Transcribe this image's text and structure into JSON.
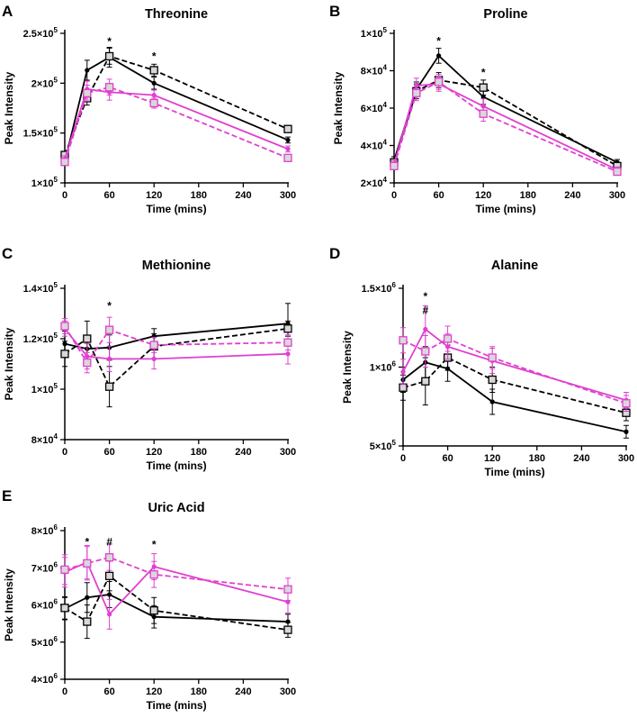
{
  "colors": {
    "black": "#000000",
    "magenta": "#e040d0",
    "square_fill": "#d8d8d8"
  },
  "chart_data": [
    {
      "panel": "A",
      "type": "line",
      "title": "Threonine",
      "xlabel": "Time (mins)",
      "ylabel": "Peak Intensity",
      "xticks": [
        0,
        60,
        120,
        180,
        240,
        300
      ],
      "xlim": [
        0,
        300
      ],
      "ylim": [
        100000,
        250000
      ],
      "yticks": [
        {
          "value": 100000,
          "mant": "1",
          "exp": "5"
        },
        {
          "value": 150000,
          "mant": "1.5",
          "exp": "5"
        },
        {
          "value": 200000,
          "mant": "2",
          "exp": "5"
        },
        {
          "value": 250000,
          "mant": "2.5",
          "exp": "5"
        }
      ],
      "series": [
        {
          "name": "black-solid-circle",
          "color": "#000000",
          "dash": false,
          "marker": "circle",
          "x": [
            0,
            30,
            60,
            120,
            300
          ],
          "y": [
            121000,
            213000,
            226000,
            200000,
            143000
          ],
          "err": [
            3000,
            10000,
            10000,
            6000,
            3000
          ]
        },
        {
          "name": "black-dashed-square",
          "color": "#000000",
          "dash": true,
          "marker": "square",
          "x": [
            0,
            30,
            60,
            120,
            300
          ],
          "y": [
            128000,
            185000,
            227000,
            213000,
            154000
          ],
          "err": [
            3000,
            7000,
            8000,
            6000,
            3000
          ]
        },
        {
          "name": "magenta-solid-circle",
          "color": "#e040d0",
          "dash": false,
          "marker": "circle",
          "x": [
            0,
            30,
            60,
            120,
            300
          ],
          "y": [
            124000,
            194000,
            191000,
            188000,
            134000
          ],
          "err": [
            3000,
            8000,
            8000,
            5000,
            3000
          ]
        },
        {
          "name": "magenta-dashed-square",
          "color": "#e040d0",
          "dash": true,
          "marker": "square",
          "x": [
            0,
            30,
            60,
            120,
            300
          ],
          "y": [
            121000,
            190000,
            196000,
            180000,
            125000
          ],
          "err": [
            3000,
            8000,
            8000,
            5000,
            3000
          ]
        }
      ],
      "annotations": [
        {
          "x": 60,
          "y": 242000,
          "text": "*"
        },
        {
          "x": 120,
          "y": 227000,
          "text": "*"
        }
      ]
    },
    {
      "panel": "B",
      "type": "line",
      "title": "Proline",
      "xlabel": "Time (mins)",
      "ylabel": "Peak Intensity",
      "xticks": [
        0,
        60,
        120,
        180,
        240,
        300
      ],
      "xlim": [
        0,
        300
      ],
      "ylim": [
        20000,
        100000
      ],
      "yticks": [
        {
          "value": 20000,
          "mant": "2",
          "exp": "4"
        },
        {
          "value": 40000,
          "mant": "4",
          "exp": "4"
        },
        {
          "value": 60000,
          "mant": "6",
          "exp": "4"
        },
        {
          "value": 80000,
          "mant": "8",
          "exp": "4"
        },
        {
          "value": 100000,
          "mant": "1",
          "exp": "5"
        }
      ],
      "series": [
        {
          "name": "black-solid-circle",
          "color": "#000000",
          "dash": false,
          "marker": "circle",
          "x": [
            0,
            30,
            60,
            120,
            300
          ],
          "y": [
            32000,
            70000,
            88000,
            66000,
            31000
          ],
          "err": [
            2000,
            4000,
            4000,
            4000,
            1500
          ]
        },
        {
          "name": "black-dashed-square",
          "color": "#000000",
          "dash": true,
          "marker": "square",
          "x": [
            0,
            30,
            60,
            120,
            300
          ],
          "y": [
            31000,
            69000,
            75000,
            71000,
            29000
          ],
          "err": [
            2000,
            4000,
            4000,
            4000,
            1500
          ]
        },
        {
          "name": "magenta-solid-circle",
          "color": "#e040d0",
          "dash": false,
          "marker": "circle",
          "x": [
            0,
            30,
            60,
            120,
            300
          ],
          "y": [
            30000,
            72000,
            73000,
            61000,
            27000
          ],
          "err": [
            2000,
            4000,
            4000,
            4000,
            1500
          ]
        },
        {
          "name": "magenta-dashed-square",
          "color": "#e040d0",
          "dash": true,
          "marker": "square",
          "x": [
            0,
            30,
            60,
            120,
            300
          ],
          "y": [
            29000,
            68000,
            74000,
            57000,
            26000
          ],
          "err": [
            2000,
            4000,
            4000,
            4000,
            1500
          ]
        }
      ],
      "annotations": [
        {
          "x": 60,
          "y": 96000,
          "text": "*"
        },
        {
          "x": 120,
          "y": 79000,
          "text": "*"
        }
      ]
    },
    {
      "panel": "C",
      "type": "line",
      "title": "Methionine",
      "xlabel": "Time (mins)",
      "ylabel": "Peak Intensity",
      "xticks": [
        0,
        60,
        120,
        180,
        240,
        300
      ],
      "xlim": [
        0,
        300
      ],
      "ylim": [
        80000,
        140000
      ],
      "yticks": [
        {
          "value": 80000,
          "mant": "8",
          "exp": "4"
        },
        {
          "value": 100000,
          "mant": "1",
          "exp": "5"
        },
        {
          "value": 120000,
          "mant": "1.2",
          "exp": "5"
        },
        {
          "value": 140000,
          "mant": "1.4",
          "exp": "5"
        }
      ],
      "series": [
        {
          "name": "black-solid-circle",
          "color": "#000000",
          "dash": false,
          "marker": "circle",
          "x": [
            0,
            30,
            60,
            120,
            300
          ],
          "y": [
            118000,
            116000,
            116500,
            121000,
            126000
          ],
          "err": [
            5000,
            5000,
            5000,
            3000,
            8000
          ]
        },
        {
          "name": "black-dashed-square",
          "color": "#000000",
          "dash": true,
          "marker": "square",
          "x": [
            0,
            30,
            60,
            120,
            300
          ],
          "y": [
            114000,
            120000,
            101000,
            117000,
            124000
          ],
          "err": [
            5000,
            7000,
            8000,
            5000,
            3000
          ]
        },
        {
          "name": "magenta-solid-circle",
          "color": "#e040d0",
          "dash": false,
          "marker": "circle",
          "x": [
            0,
            30,
            60,
            120,
            300
          ],
          "y": [
            124000,
            113000,
            112000,
            112000,
            114000
          ],
          "err": [
            3000,
            5000,
            5000,
            4000,
            4000
          ]
        },
        {
          "name": "magenta-dashed-square",
          "color": "#e040d0",
          "dash": true,
          "marker": "square",
          "x": [
            0,
            30,
            60,
            120,
            300
          ],
          "y": [
            125000,
            110500,
            123500,
            117500,
            118500
          ],
          "err": [
            3000,
            4000,
            5000,
            3000,
            3000
          ]
        }
      ],
      "annotations": [
        {
          "x": 60,
          "y": 133000,
          "text": "*"
        }
      ]
    },
    {
      "panel": "D",
      "type": "line",
      "title": "Alanine",
      "xlabel": "Time (mins)",
      "ylabel": "Peak Intensity",
      "xticks": [
        0,
        60,
        120,
        180,
        240,
        300
      ],
      "xlim": [
        0,
        300
      ],
      "ylim": [
        500000,
        1500000
      ],
      "yticks": [
        {
          "value": 500000,
          "mant": "5",
          "exp": "5"
        },
        {
          "value": 1000000,
          "mant": "1",
          "exp": "6"
        },
        {
          "value": 1500000,
          "mant": "1.5",
          "exp": "6"
        }
      ],
      "series": [
        {
          "name": "black-solid-circle",
          "color": "#000000",
          "dash": false,
          "marker": "circle",
          "x": [
            0,
            30,
            60,
            120,
            300
          ],
          "y": [
            920000,
            1030000,
            990000,
            780000,
            590000
          ],
          "err": [
            80000,
            100000,
            80000,
            80000,
            40000
          ]
        },
        {
          "name": "black-dashed-square",
          "color": "#000000",
          "dash": true,
          "marker": "square",
          "x": [
            0,
            30,
            60,
            120,
            300
          ],
          "y": [
            870000,
            910000,
            1060000,
            920000,
            710000
          ],
          "err": [
            80000,
            150000,
            80000,
            80000,
            50000
          ]
        },
        {
          "name": "magenta-solid-circle",
          "color": "#e040d0",
          "dash": false,
          "marker": "circle",
          "x": [
            0,
            30,
            60,
            120,
            300
          ],
          "y": [
            970000,
            1240000,
            1130000,
            1040000,
            790000
          ],
          "err": [
            80000,
            150000,
            80000,
            80000,
            50000
          ]
        },
        {
          "name": "magenta-dashed-square",
          "color": "#e040d0",
          "dash": true,
          "marker": "square",
          "x": [
            0,
            30,
            60,
            120,
            300
          ],
          "y": [
            1170000,
            1100000,
            1180000,
            1060000,
            770000
          ],
          "err": [
            80000,
            100000,
            80000,
            70000,
            50000
          ]
        }
      ],
      "annotations": [
        {
          "x": 30,
          "y": 1450000,
          "text": "*"
        },
        {
          "x": 30,
          "y": 1360000,
          "text": "#"
        }
      ]
    },
    {
      "panel": "E",
      "type": "line",
      "title": "Uric Acid",
      "xlabel": "Time (mins)",
      "ylabel": "Peak Intensity",
      "xticks": [
        0,
        60,
        120,
        180,
        240,
        300
      ],
      "xlim": [
        0,
        300
      ],
      "ylim": [
        4000000,
        8000000
      ],
      "yticks": [
        {
          "value": 4000000,
          "mant": "4",
          "exp": "6"
        },
        {
          "value": 5000000,
          "mant": "5",
          "exp": "6"
        },
        {
          "value": 6000000,
          "mant": "6",
          "exp": "6"
        },
        {
          "value": 7000000,
          "mant": "7",
          "exp": "6"
        },
        {
          "value": 8000000,
          "mant": "8",
          "exp": "6"
        }
      ],
      "series": [
        {
          "name": "black-solid-circle",
          "color": "#000000",
          "dash": false,
          "marker": "circle",
          "x": [
            0,
            30,
            60,
            120,
            300
          ],
          "y": [
            5900000,
            6200000,
            6280000,
            5680000,
            5550000
          ],
          "err": [
            300000,
            400000,
            350000,
            300000,
            200000
          ]
        },
        {
          "name": "black-dashed-square",
          "color": "#000000",
          "dash": true,
          "marker": "square",
          "x": [
            0,
            30,
            60,
            120,
            300
          ],
          "y": [
            5920000,
            5550000,
            6780000,
            5850000,
            5330000
          ],
          "err": [
            300000,
            450000,
            400000,
            350000,
            200000
          ]
        },
        {
          "name": "magenta-solid-circle",
          "color": "#e040d0",
          "dash": false,
          "marker": "circle",
          "x": [
            0,
            30,
            60,
            120,
            300
          ],
          "y": [
            6880000,
            7150000,
            5750000,
            7030000,
            6080000
          ],
          "err": [
            400000,
            450000,
            400000,
            350000,
            300000
          ]
        },
        {
          "name": "magenta-dashed-square",
          "color": "#e040d0",
          "dash": true,
          "marker": "square",
          "x": [
            0,
            30,
            60,
            120,
            300
          ],
          "y": [
            6950000,
            7120000,
            7280000,
            6820000,
            6420000
          ],
          "err": [
            400000,
            450000,
            350000,
            350000,
            300000
          ]
        }
      ],
      "annotations": [
        {
          "x": 30,
          "y": 7700000,
          "text": "*"
        },
        {
          "x": 60,
          "y": 7700000,
          "text": "#"
        },
        {
          "x": 120,
          "y": 7630000,
          "text": "*"
        }
      ]
    }
  ]
}
